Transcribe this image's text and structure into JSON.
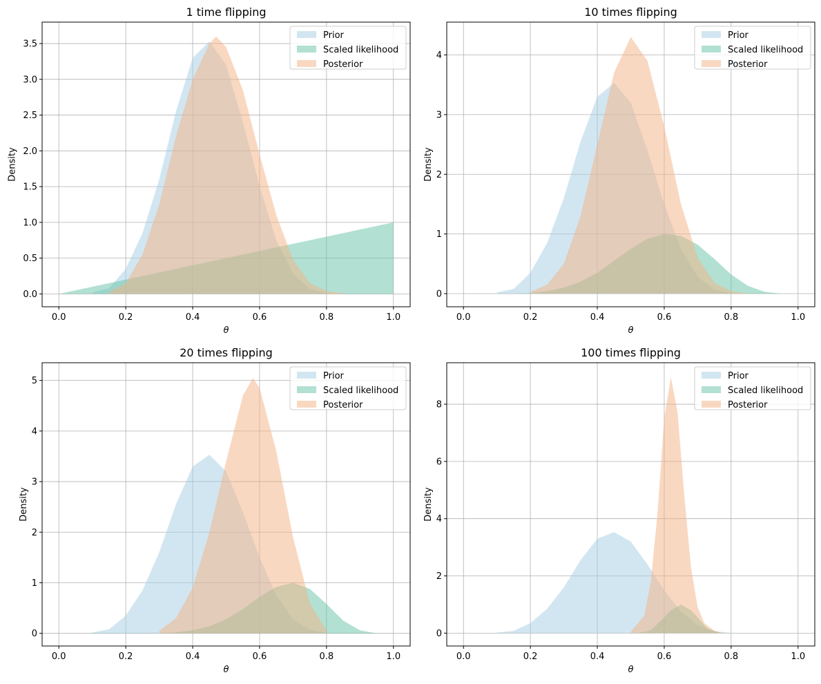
{
  "chart_data": [
    {
      "type": "area",
      "title": "1 time flipping",
      "xlabel": "θ",
      "ylabel": "Density",
      "xlim": [
        -0.05,
        1.05
      ],
      "ylim": [
        -0.18,
        3.8
      ],
      "xticks": [
        "0.0",
        "0.2",
        "0.4",
        "0.6",
        "0.8",
        "1.0"
      ],
      "yticks": [
        "0.0",
        "0.5",
        "1.0",
        "1.5",
        "2.0",
        "2.5",
        "3.0",
        "3.5"
      ],
      "ytick_values": [
        0,
        0.5,
        1.0,
        1.5,
        2.0,
        2.5,
        3.0,
        3.5
      ],
      "grid": true,
      "legend": "top-right",
      "series": [
        {
          "name": "Prior",
          "color": "#a6cee3",
          "x": [
            0.1,
            0.15,
            0.2,
            0.25,
            0.3,
            0.35,
            0.4,
            0.45,
            0.5,
            0.55,
            0.6,
            0.65,
            0.7,
            0.75,
            0.8
          ],
          "y": [
            0.02,
            0.08,
            0.35,
            0.85,
            1.6,
            2.55,
            3.3,
            3.53,
            3.2,
            2.4,
            1.5,
            0.75,
            0.28,
            0.07,
            0.01
          ]
        },
        {
          "name": "Scaled likelihood",
          "color": "#66c2a5",
          "x": [
            0.0,
            1.0
          ],
          "y": [
            0.0,
            1.0
          ]
        },
        {
          "name": "Posterior",
          "color": "#f4b183",
          "x": [
            0.15,
            0.2,
            0.25,
            0.3,
            0.35,
            0.4,
            0.45,
            0.47,
            0.5,
            0.55,
            0.6,
            0.65,
            0.7,
            0.75,
            0.8,
            0.85
          ],
          "y": [
            0.02,
            0.15,
            0.55,
            1.25,
            2.2,
            3.0,
            3.5,
            3.6,
            3.45,
            2.85,
            1.95,
            1.1,
            0.48,
            0.15,
            0.04,
            0.01
          ]
        }
      ]
    },
    {
      "type": "area",
      "title": "10 times flipping",
      "xlabel": "θ",
      "ylabel": "Density",
      "xlim": [
        -0.05,
        1.05
      ],
      "ylim": [
        -0.22,
        4.55
      ],
      "xticks": [
        "0.0",
        "0.2",
        "0.4",
        "0.6",
        "0.8",
        "1.0"
      ],
      "yticks": [
        "0",
        "1",
        "2",
        "3",
        "4"
      ],
      "ytick_values": [
        0,
        1,
        2,
        3,
        4
      ],
      "grid": true,
      "legend": "top-right",
      "series": [
        {
          "name": "Prior",
          "color": "#a6cee3",
          "x": [
            0.1,
            0.15,
            0.2,
            0.25,
            0.3,
            0.35,
            0.4,
            0.45,
            0.5,
            0.55,
            0.6,
            0.65,
            0.7,
            0.75,
            0.8
          ],
          "y": [
            0.02,
            0.08,
            0.35,
            0.85,
            1.6,
            2.55,
            3.3,
            3.53,
            3.2,
            2.4,
            1.5,
            0.75,
            0.28,
            0.07,
            0.01
          ]
        },
        {
          "name": "Scaled likelihood",
          "color": "#66c2a5",
          "x": [
            0.15,
            0.2,
            0.25,
            0.3,
            0.35,
            0.4,
            0.45,
            0.5,
            0.55,
            0.6,
            0.65,
            0.7,
            0.75,
            0.8,
            0.85,
            0.9,
            0.95
          ],
          "y": [
            0.0,
            0.01,
            0.04,
            0.1,
            0.2,
            0.35,
            0.55,
            0.75,
            0.92,
            1.0,
            0.97,
            0.82,
            0.58,
            0.32,
            0.13,
            0.03,
            0.0
          ]
        },
        {
          "name": "Posterior",
          "color": "#f4b183",
          "x": [
            0.2,
            0.25,
            0.3,
            0.35,
            0.4,
            0.45,
            0.5,
            0.55,
            0.6,
            0.65,
            0.7,
            0.75,
            0.8,
            0.85
          ],
          "y": [
            0.03,
            0.15,
            0.5,
            1.3,
            2.5,
            3.7,
            4.3,
            3.9,
            2.8,
            1.5,
            0.6,
            0.18,
            0.04,
            0.0
          ]
        }
      ]
    },
    {
      "type": "area",
      "title": "20 times flipping",
      "xlabel": "θ",
      "ylabel": "Density",
      "xlim": [
        -0.05,
        1.05
      ],
      "ylim": [
        -0.25,
        5.35
      ],
      "xticks": [
        "0.0",
        "0.2",
        "0.4",
        "0.6",
        "0.8",
        "1.0"
      ],
      "yticks": [
        "0",
        "1",
        "2",
        "3",
        "4",
        "5"
      ],
      "ytick_values": [
        0,
        1,
        2,
        3,
        4,
        5
      ],
      "grid": true,
      "legend": "top-right",
      "series": [
        {
          "name": "Prior",
          "color": "#a6cee3",
          "x": [
            0.1,
            0.15,
            0.2,
            0.25,
            0.3,
            0.35,
            0.4,
            0.45,
            0.5,
            0.55,
            0.6,
            0.65,
            0.7,
            0.75,
            0.8
          ],
          "y": [
            0.02,
            0.08,
            0.35,
            0.85,
            1.6,
            2.55,
            3.3,
            3.53,
            3.2,
            2.4,
            1.5,
            0.75,
            0.28,
            0.07,
            0.01
          ]
        },
        {
          "name": "Scaled likelihood",
          "color": "#66c2a5",
          "x": [
            0.3,
            0.35,
            0.4,
            0.45,
            0.5,
            0.55,
            0.6,
            0.65,
            0.7,
            0.75,
            0.8,
            0.85,
            0.9,
            0.95
          ],
          "y": [
            0.0,
            0.02,
            0.06,
            0.14,
            0.28,
            0.48,
            0.72,
            0.92,
            1.0,
            0.88,
            0.58,
            0.25,
            0.06,
            0.0
          ]
        },
        {
          "name": "Posterior",
          "color": "#f4b183",
          "x": [
            0.3,
            0.35,
            0.4,
            0.45,
            0.5,
            0.55,
            0.58,
            0.6,
            0.65,
            0.7,
            0.75,
            0.8
          ],
          "y": [
            0.05,
            0.3,
            0.9,
            2.0,
            3.4,
            4.7,
            5.05,
            4.85,
            3.6,
            1.9,
            0.6,
            0.05
          ]
        }
      ]
    },
    {
      "type": "area",
      "title": "100 times flipping",
      "xlabel": "θ",
      "ylabel": "Density",
      "xlim": [
        -0.05,
        1.05
      ],
      "ylim": [
        -0.45,
        9.45
      ],
      "xticks": [
        "0.0",
        "0.2",
        "0.4",
        "0.6",
        "0.8",
        "1.0"
      ],
      "yticks": [
        "0",
        "2",
        "4",
        "6",
        "8"
      ],
      "ytick_values": [
        0,
        2,
        4,
        6,
        8
      ],
      "grid": true,
      "legend": "top-right",
      "series": [
        {
          "name": "Prior",
          "color": "#a6cee3",
          "x": [
            0.1,
            0.15,
            0.2,
            0.25,
            0.3,
            0.35,
            0.4,
            0.45,
            0.5,
            0.55,
            0.6,
            0.65,
            0.7,
            0.75,
            0.8
          ],
          "y": [
            0.02,
            0.08,
            0.35,
            0.85,
            1.6,
            2.55,
            3.3,
            3.53,
            3.2,
            2.4,
            1.5,
            0.75,
            0.28,
            0.07,
            0.01
          ]
        },
        {
          "name": "Scaled likelihood",
          "color": "#66c2a5",
          "x": [
            0.52,
            0.56,
            0.6,
            0.62,
            0.65,
            0.68,
            0.7,
            0.73,
            0.77
          ],
          "y": [
            0.0,
            0.1,
            0.55,
            0.8,
            1.0,
            0.8,
            0.55,
            0.15,
            0.0
          ]
        },
        {
          "name": "Posterior",
          "color": "#f4b183",
          "x": [
            0.5,
            0.54,
            0.56,
            0.58,
            0.6,
            0.62,
            0.64,
            0.66,
            0.68,
            0.7,
            0.72,
            0.75,
            0.78
          ],
          "y": [
            0.05,
            0.6,
            1.8,
            4.2,
            7.5,
            8.95,
            7.7,
            4.8,
            2.3,
            0.9,
            0.35,
            0.08,
            0.0
          ]
        }
      ]
    }
  ]
}
